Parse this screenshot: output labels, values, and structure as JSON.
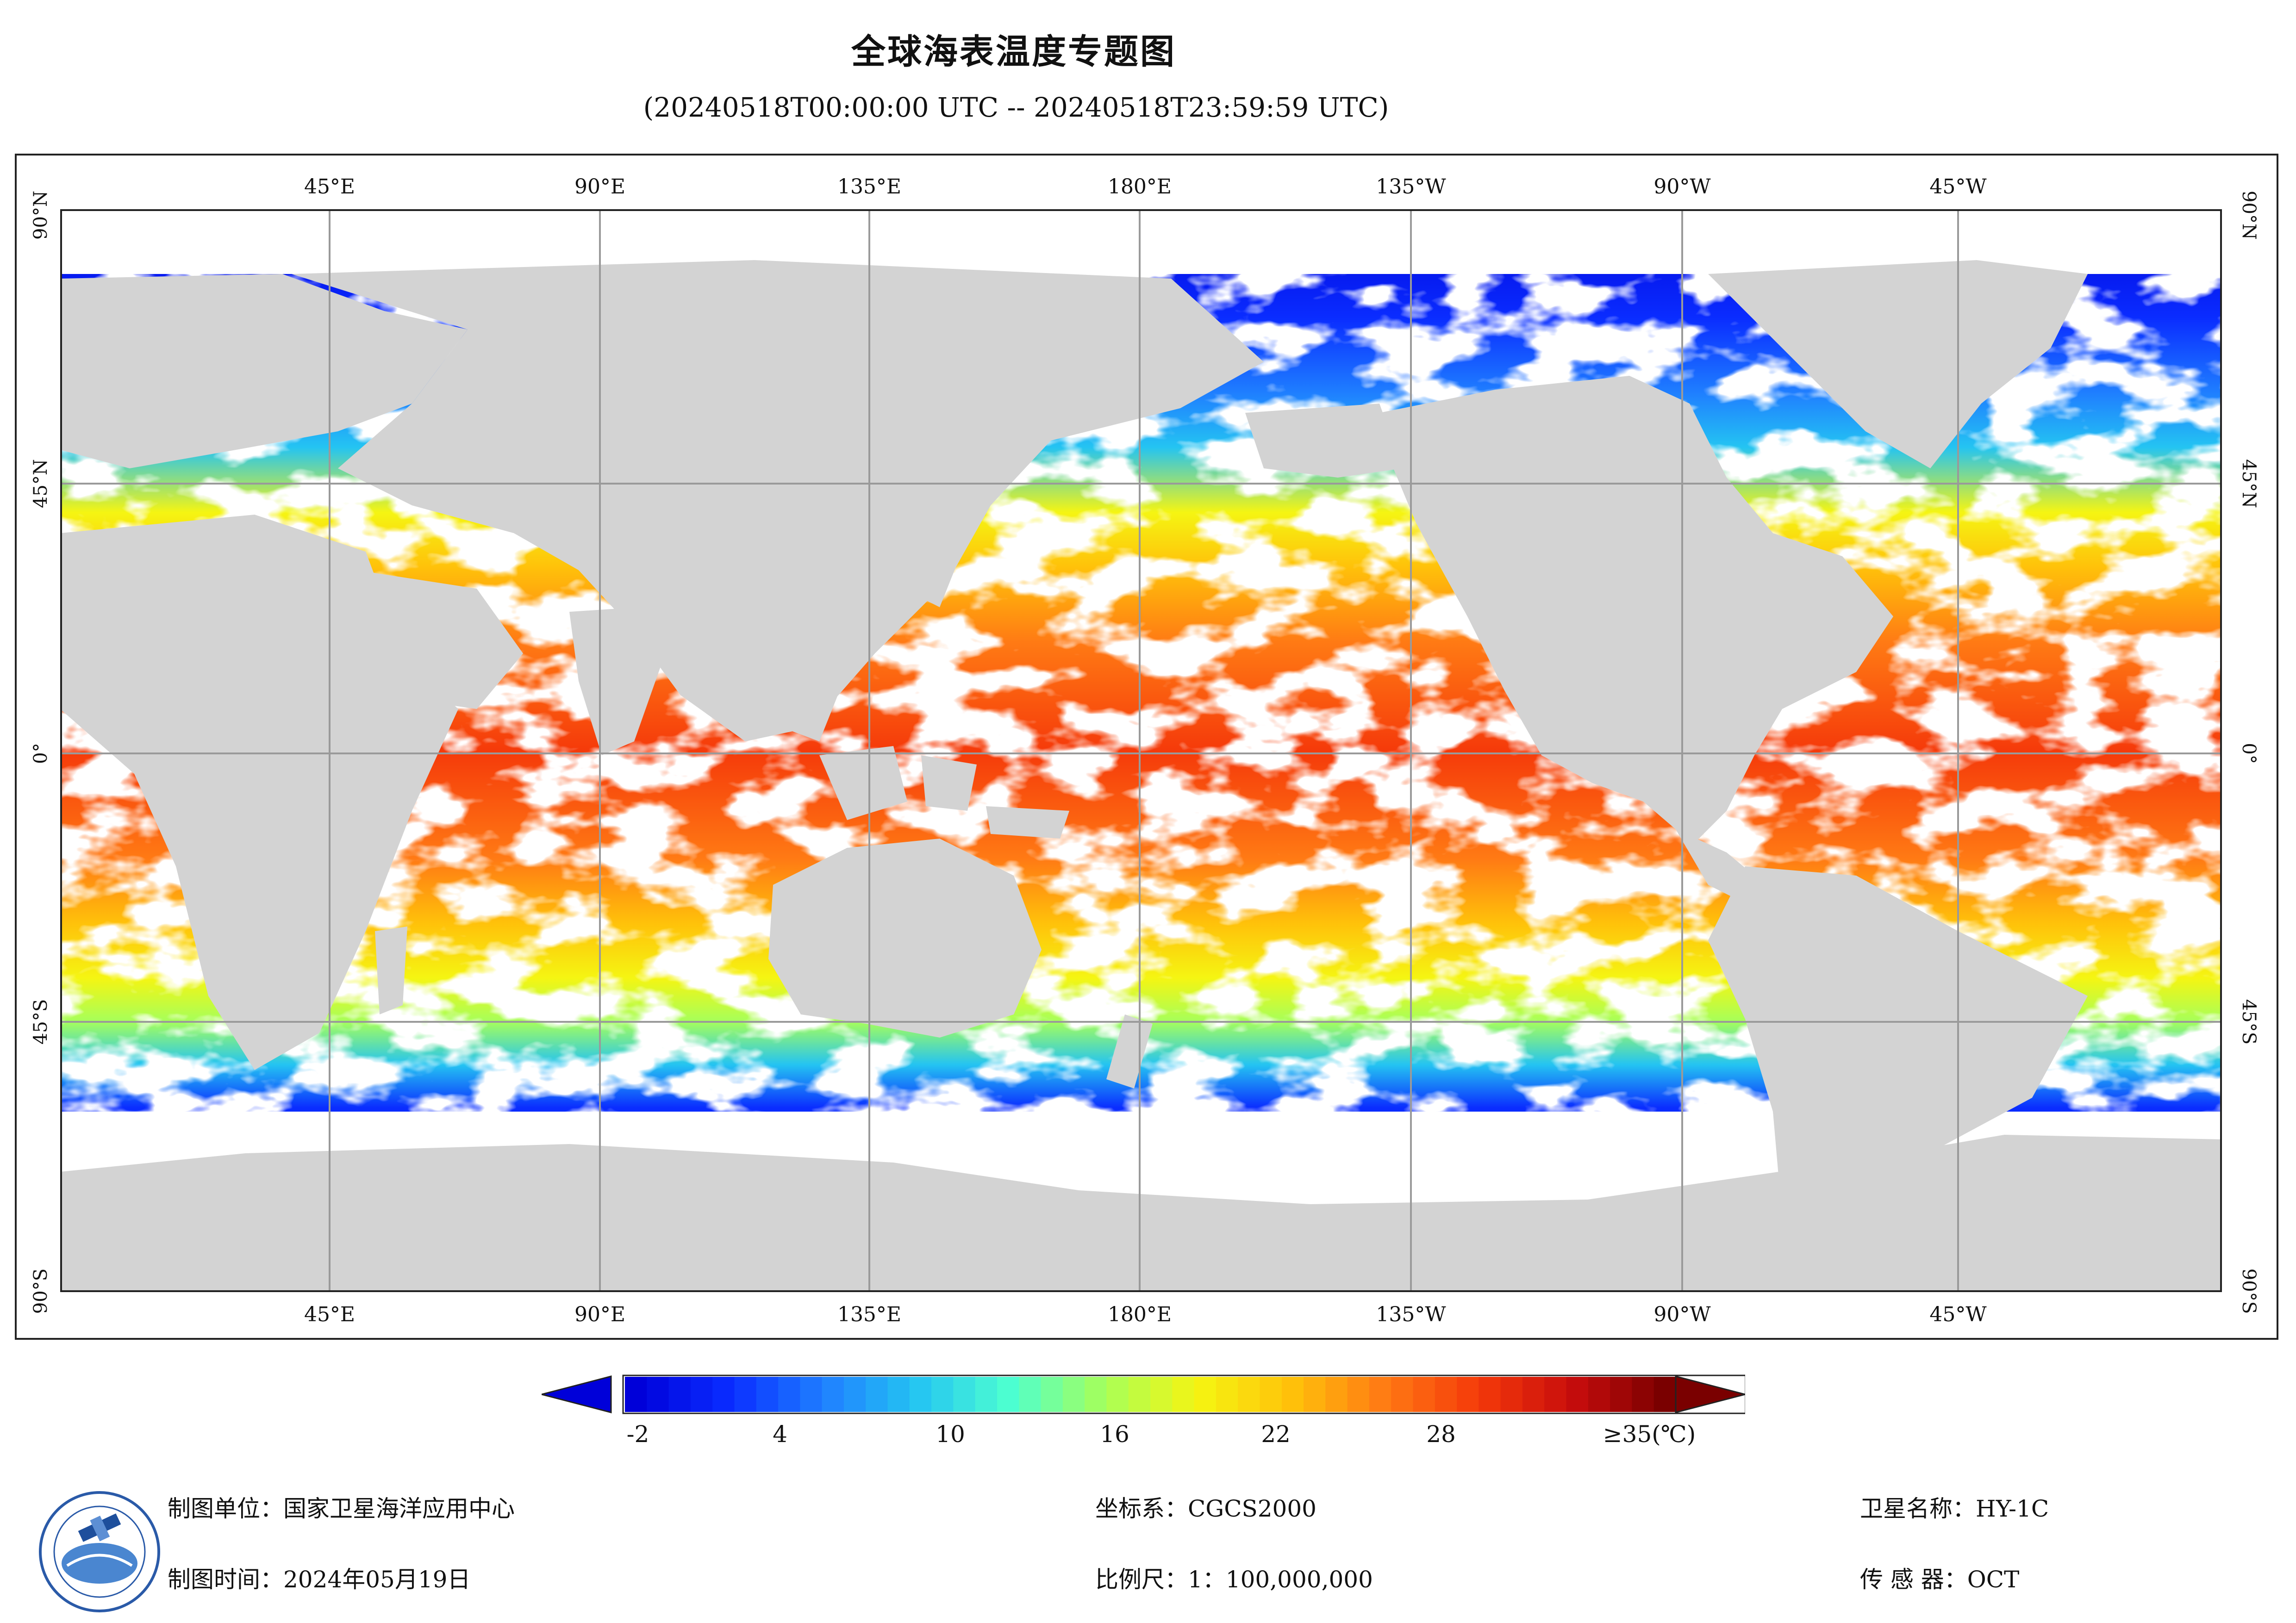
{
  "header": {
    "title": "全球海表温度专题图",
    "subtitle": "(20240518T00:00:00 UTC -- 20240518T23:59:59 UTC)"
  },
  "map": {
    "lon_labels": [
      "45°E",
      "90°E",
      "135°E",
      "180°E",
      "135°W",
      "90°W",
      "45°W"
    ],
    "lat_labels": [
      "90°N",
      "45°N",
      "0°",
      "45°S",
      "90°S"
    ],
    "colors": {
      "land": "#d3d3d3",
      "cloud": "#ffffff",
      "grid": "#9a9a9a"
    }
  },
  "colorbar": {
    "ticks": [
      "-2",
      "4",
      "10",
      "16",
      "22",
      "28",
      "≥35(℃)"
    ],
    "stops": [
      "#0000d9",
      "#0a2cff",
      "#1f7fff",
      "#24c4f2",
      "#4dffd0",
      "#a6ff5a",
      "#f5f512",
      "#ffc20a",
      "#ff7a14",
      "#f53a0a",
      "#c80d0d",
      "#7a0000"
    ]
  },
  "footer": {
    "unit_label": "制图单位：",
    "unit_value": "国家卫星海洋应用中心",
    "time_label": "制图时间：",
    "time_value": "2024年05月19日",
    "crs_label": "坐标系：",
    "crs_value": "CGCS2000",
    "scale_label": "比例尺：",
    "scale_value": "1：100,000,000",
    "sat_label": "卫星名称：",
    "sat_value": "HY-1C",
    "sensor_label": "传 感 器：",
    "sensor_value": "OCT"
  }
}
